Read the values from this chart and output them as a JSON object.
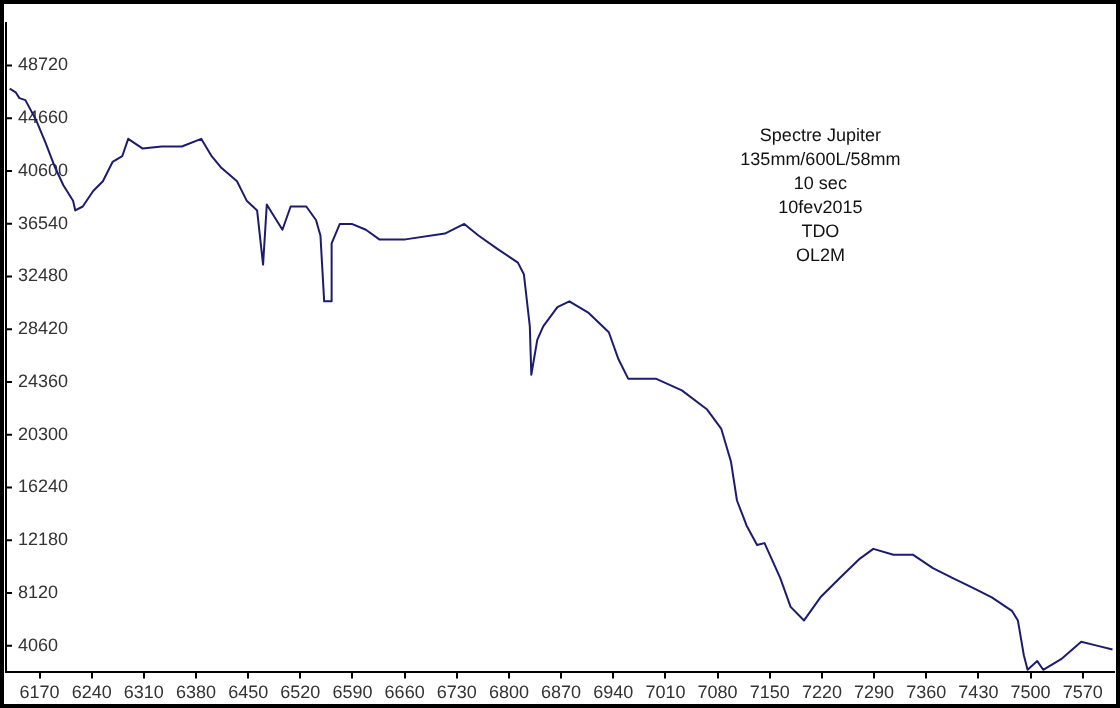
{
  "chart_data": {
    "type": "line",
    "marker": "none",
    "line_style": "solid",
    "grid": false,
    "legend": false,
    "annotations": [
      "Spectre Jupiter",
      "135mm/600L/58mm",
      "10 sec",
      "10fev2015",
      "TDO",
      "OL2M"
    ],
    "xlim": [
      6125,
      7612
    ],
    "ylim": [
      2000,
      52000
    ],
    "xticks": [
      6170,
      6240,
      6310,
      6380,
      6450,
      6520,
      6590,
      6660,
      6730,
      6800,
      6870,
      6940,
      7010,
      7080,
      7150,
      7220,
      7290,
      7360,
      7430,
      7500,
      7570
    ],
    "yticks": [
      4060,
      8120,
      12180,
      16240,
      20300,
      24360,
      28420,
      32480,
      36540,
      40600,
      44660,
      48720
    ],
    "series": [
      {
        "color": "#1c1c6e",
        "x": [
          6130,
          6138,
          6143,
          6151,
          6165,
          6178,
          6191,
          6202,
          6215,
          6218,
          6228,
          6242,
          6255,
          6268,
          6281,
          6289,
          6308,
          6334,
          6361,
          6387,
          6401,
          6414,
          6435,
          6448,
          6462,
          6470,
          6475,
          6483,
          6496,
          6507,
          6528,
          6541,
          6547,
          6552,
          6560,
          6562,
          6573,
          6589,
          6608,
          6626,
          6661,
          6714,
          6740,
          6759,
          6785,
          6812,
          6820,
          6828,
          6830,
          6838,
          6846,
          6865,
          6881,
          6907,
          6934,
          6947,
          6960,
          6997,
          7032,
          7066,
          7085,
          7098,
          7106,
          7119,
          7133,
          7143,
          7164,
          7178,
          7196,
          7218,
          7244,
          7271,
          7289,
          7316,
          7342,
          7369,
          7395,
          7422,
          7448,
          7475,
          7483,
          7491,
          7496,
          7509,
          7517,
          7541,
          7568,
          7589,
          7610
        ],
        "values": [
          46940,
          46650,
          46200,
          46050,
          44560,
          42770,
          40840,
          39500,
          38310,
          37560,
          37860,
          39050,
          39800,
          41290,
          41730,
          43070,
          42330,
          42480,
          42480,
          43070,
          41730,
          40840,
          39800,
          38310,
          37560,
          33390,
          38010,
          37270,
          36070,
          37860,
          37860,
          36820,
          35630,
          30560,
          30560,
          35030,
          36520,
          36520,
          36070,
          35330,
          35330,
          35780,
          36520,
          35630,
          34580,
          33540,
          32650,
          28630,
          24910,
          27590,
          28630,
          30120,
          30560,
          29670,
          28180,
          26100,
          24610,
          24610,
          23710,
          22230,
          20740,
          18210,
          15230,
          13290,
          11800,
          11950,
          9270,
          7040,
          6000,
          7780,
          9270,
          10760,
          11510,
          11060,
          11060,
          10020,
          9270,
          8530,
          7780,
          6740,
          6000,
          3320,
          2200,
          2870,
          2200,
          3020,
          4360,
          4060,
          3760
        ]
      }
    ]
  }
}
